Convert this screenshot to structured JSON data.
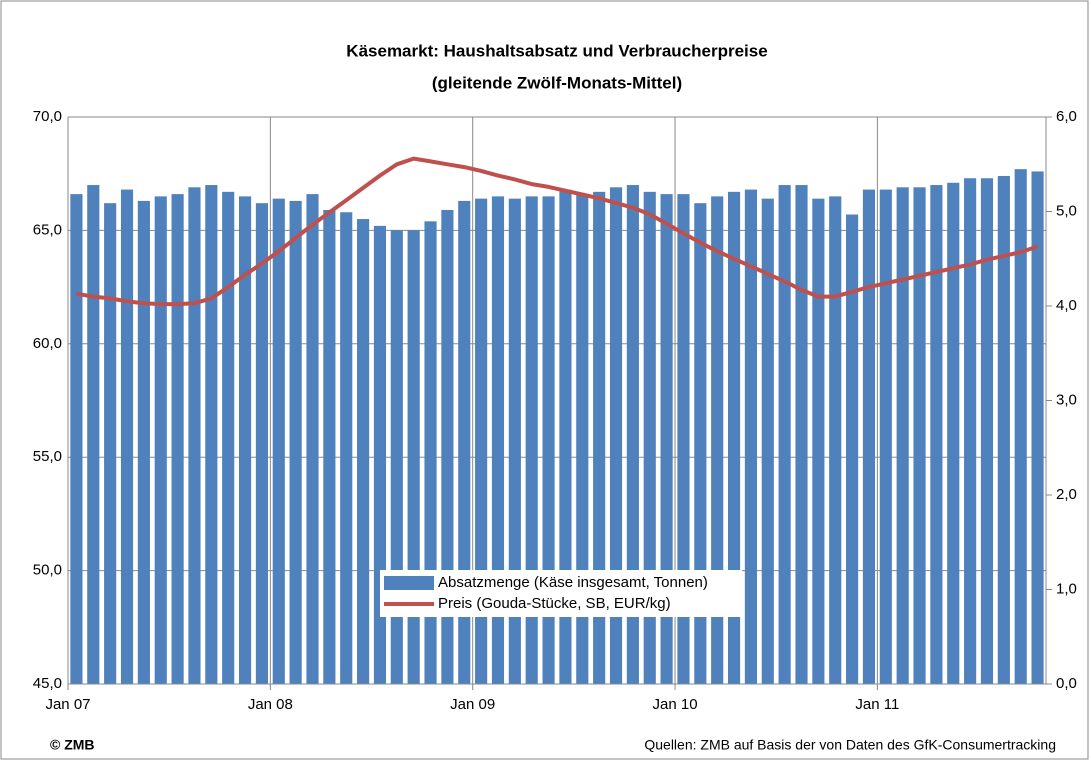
{
  "chart_data": {
    "type": "bar-line",
    "title": "Käsemarkt: Haushaltsabsatz und Verbraucherpreise",
    "subtitle": "(gleitende Zwölf-Monats-Mittel)",
    "annotations": [
      "© ZMB",
      "Quellen: ZMB auf Basis der von Daten des GfK-Consumertracking"
    ],
    "categories": [
      "Jan 07",
      null,
      null,
      null,
      null,
      null,
      null,
      null,
      null,
      null,
      null,
      null,
      "Jan 08",
      null,
      null,
      null,
      null,
      null,
      null,
      null,
      null,
      null,
      null,
      null,
      "Jan 09",
      null,
      null,
      null,
      null,
      null,
      null,
      null,
      null,
      null,
      null,
      null,
      "Jan 10",
      null,
      null,
      null,
      null,
      null,
      null,
      null,
      null,
      null,
      null,
      null,
      "Jan 11",
      null,
      null,
      null,
      null,
      null,
      null,
      null,
      null,
      null
    ],
    "series": [
      {
        "name": "Absatzmenge (Käse insgesamt, Tonnen)",
        "type": "bar",
        "color": "#4f81bd",
        "values": [
          66.6,
          67.0,
          66.2,
          66.8,
          66.3,
          66.5,
          66.6,
          66.9,
          67.0,
          66.7,
          66.5,
          66.2,
          66.4,
          66.3,
          66.6,
          65.9,
          65.8,
          65.5,
          65.2,
          65.0,
          65.0,
          65.4,
          65.9,
          66.3,
          66.4,
          66.5,
          66.4,
          66.5,
          66.5,
          66.8,
          66.6,
          66.7,
          66.9,
          67.0,
          66.7,
          66.6,
          66.6,
          66.2,
          66.5,
          66.7,
          66.8,
          66.4,
          67.0,
          67.0,
          66.4,
          66.5,
          65.7,
          66.8,
          66.8,
          66.9,
          66.9,
          67.0,
          67.1,
          67.3,
          67.3,
          67.4,
          67.7,
          67.6
        ]
      },
      {
        "name": "Preis (Gouda-Stücke, SB, EUR/kg)",
        "type": "line",
        "axis": "y2",
        "color": "#c0504d",
        "values": [
          4.13,
          4.1,
          4.08,
          4.05,
          4.03,
          4.02,
          4.02,
          4.03,
          4.08,
          4.2,
          4.33,
          4.45,
          4.58,
          4.72,
          4.86,
          4.99,
          5.12,
          5.25,
          5.38,
          5.5,
          5.56,
          5.53,
          5.5,
          5.47,
          5.43,
          5.38,
          5.34,
          5.29,
          5.26,
          5.22,
          5.18,
          5.14,
          5.09,
          5.04,
          4.97,
          4.87,
          4.77,
          4.67,
          4.58,
          4.5,
          4.42,
          4.34,
          4.26,
          4.17,
          4.1,
          4.1,
          4.15,
          4.2,
          4.24,
          4.28,
          4.32,
          4.36,
          4.4,
          4.44,
          4.49,
          4.53,
          4.57,
          4.63
        ]
      }
    ],
    "ylim": [
      45,
      70
    ],
    "yticks": [
      {
        "value": 45,
        "label": "45,0"
      },
      {
        "value": 50,
        "label": "50,0"
      },
      {
        "value": 55,
        "label": "55,0"
      },
      {
        "value": 60,
        "label": "60,0"
      },
      {
        "value": 65,
        "label": "65,0"
      },
      {
        "value": 70,
        "label": "70,0"
      }
    ],
    "y2lim": [
      0,
      6
    ],
    "y2ticks": [
      {
        "value": 0,
        "label": "0,0"
      },
      {
        "value": 1,
        "label": "1,0"
      },
      {
        "value": 2,
        "label": "2,0"
      },
      {
        "value": 3,
        "label": "3,0"
      },
      {
        "value": 4,
        "label": "4,0"
      },
      {
        "value": 5,
        "label": "5,0"
      },
      {
        "value": 6,
        "label": "6,0"
      }
    ],
    "grid": true,
    "legend": "bottom"
  }
}
